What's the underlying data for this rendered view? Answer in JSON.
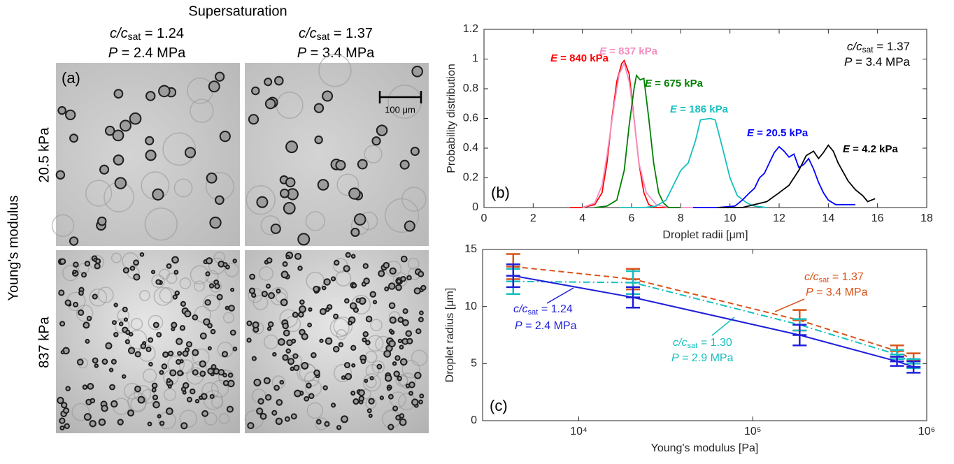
{
  "panel_a": {
    "title": "Supersaturation",
    "columns": [
      {
        "line1": "c/csat = 1.24",
        "line2": "P = 2.4 MPa"
      },
      {
        "line1": "c/csat = 1.37",
        "line2": "P = 3.4 MPa"
      }
    ],
    "rows": [
      "20.5 kPa",
      "837 kPa"
    ],
    "row_axis": "Young's modulus",
    "panel_label": "(a)",
    "scale_bar": "100 μm"
  },
  "chart_data": [
    {
      "type": "line",
      "panel_label": "(b)",
      "xlabel": "Droplet radii [μm]",
      "ylabel": "Probability distribution",
      "xlim": [
        0,
        18
      ],
      "xticks": [
        0,
        2,
        4,
        6,
        8,
        10,
        12,
        14,
        16,
        18
      ],
      "ylim": [
        0,
        1.2
      ],
      "yticks": [
        0,
        0.2,
        0.4,
        0.6,
        0.8,
        1,
        1.2
      ],
      "annotation": {
        "line1": "c/csat = 1.37",
        "line2": "P = 3.4 MPa"
      },
      "series": [
        {
          "name": "E = 840 kPa",
          "color": "#ff0000",
          "x": [
            3.5,
            4,
            4.5,
            4.8,
            5.0,
            5.2,
            5.4,
            5.6,
            5.7,
            5.9,
            6.1,
            6.3,
            6.5,
            6.7,
            7,
            7.5
          ],
          "values": [
            0,
            0,
            0.02,
            0.1,
            0.3,
            0.6,
            0.85,
            0.97,
            0.99,
            0.9,
            0.6,
            0.3,
            0.1,
            0.02,
            0,
            0
          ]
        },
        {
          "name": "E = 837 kPa",
          "color": "#f48fc0",
          "x": [
            4,
            4.5,
            4.8,
            5.0,
            5.3,
            5.5,
            5.7,
            5.9,
            6.1,
            6.3,
            6.6,
            7,
            7.5,
            8,
            9.5
          ],
          "values": [
            0,
            0.03,
            0.15,
            0.35,
            0.7,
            0.9,
            0.97,
            0.85,
            0.6,
            0.3,
            0.1,
            0.02,
            0,
            0,
            0
          ]
        },
        {
          "name": "E = 675 kPa",
          "color": "#008000",
          "x": [
            4.5,
            5,
            5.4,
            5.7,
            5.9,
            6.1,
            6.2,
            6.35,
            6.5,
            6.7,
            6.9,
            7.1,
            7.3,
            7.5,
            8
          ],
          "values": [
            0,
            0.01,
            0.05,
            0.25,
            0.55,
            0.8,
            0.89,
            0.86,
            0.87,
            0.6,
            0.3,
            0.1,
            0.03,
            0,
            0
          ]
        },
        {
          "name": "E = 186 kPa",
          "color": "#17bfbf",
          "x": [
            5.5,
            6.5,
            7,
            7.4,
            7.7,
            8,
            8.3,
            8.6,
            8.8,
            9.2,
            9.4,
            9.7,
            10,
            10.3,
            10.7,
            11,
            11.5
          ],
          "values": [
            0,
            0,
            0.01,
            0.05,
            0.15,
            0.25,
            0.3,
            0.45,
            0.59,
            0.6,
            0.59,
            0.4,
            0.2,
            0.08,
            0.03,
            0.01,
            0
          ]
        },
        {
          "name": "E = 20.5 kPa",
          "color": "#0000ff",
          "x": [
            8.5,
            9.5,
            10.2,
            10.5,
            10.8,
            11.0,
            11.2,
            11.4,
            11.6,
            11.8,
            12.0,
            12.2,
            12.4,
            12.6,
            12.8,
            13.0,
            13.2,
            13.4,
            13.6,
            13.8,
            14.0,
            14.3,
            14.6,
            15.1
          ],
          "values": [
            0,
            0,
            0.01,
            0.05,
            0.1,
            0.13,
            0.2,
            0.23,
            0.3,
            0.37,
            0.41,
            0.38,
            0.34,
            0.36,
            0.27,
            0.29,
            0.33,
            0.26,
            0.17,
            0.1,
            0.05,
            0.02,
            0.02,
            0.02
          ]
        },
        {
          "name": "E = 4.2 kPa",
          "color": "#000000",
          "x": [
            9.5,
            10.5,
            11,
            11.5,
            12,
            12.4,
            12.8,
            13.1,
            13.4,
            13.6,
            13.8,
            14.0,
            14.2,
            14.4,
            14.8,
            15.1,
            15.4,
            15.6,
            15.9
          ],
          "values": [
            0,
            0,
            0.02,
            0.04,
            0.1,
            0.15,
            0.25,
            0.35,
            0.38,
            0.33,
            0.37,
            0.42,
            0.38,
            0.3,
            0.18,
            0.12,
            0.08,
            0.04,
            0.06
          ]
        }
      ]
    },
    {
      "type": "line",
      "panel_label": "(c)",
      "xlabel": "Young's modulus [Pa]",
      "ylabel": "Droplet radius [μm]",
      "xscale": "log",
      "xlim": [
        2800,
        1000000
      ],
      "xticks": [
        {
          "value": 10000,
          "label": "10⁴"
        },
        {
          "value": 100000,
          "label": "10⁵"
        },
        {
          "value": 1000000,
          "label": "10⁶"
        }
      ],
      "ylim": [
        0,
        15
      ],
      "yticks": [
        0,
        5,
        10,
        15
      ],
      "x": [
        4200,
        20500,
        186000,
        675000,
        840000
      ],
      "series": [
        {
          "name": "c/csat = 1.37",
          "subname": "P = 3.4 MPa",
          "color": "#d95319",
          "linestyle": "dashed",
          "values": [
            13.5,
            12.4,
            8.8,
            6.1,
            5.3
          ],
          "errors": [
            1.1,
            0.9,
            0.9,
            0.5,
            0.6
          ]
        },
        {
          "name": "c/csat = 1.30",
          "subname": "P = 2.9 MPa",
          "color": "#17bfbf",
          "linestyle": "dashdot",
          "values": [
            12.2,
            12.1,
            8.4,
            5.8,
            5.0
          ],
          "errors": [
            1.1,
            1.0,
            0.5,
            0.4,
            0.4
          ]
        },
        {
          "name": "c/csat = 1.24",
          "subname": "P = 2.4 MPa",
          "color": "#1f1fd9",
          "linestyle": "solid",
          "values": [
            12.7,
            10.8,
            7.5,
            5.2,
            4.7
          ],
          "errors": [
            1.0,
            0.9,
            0.9,
            0.4,
            0.5
          ]
        }
      ]
    }
  ]
}
